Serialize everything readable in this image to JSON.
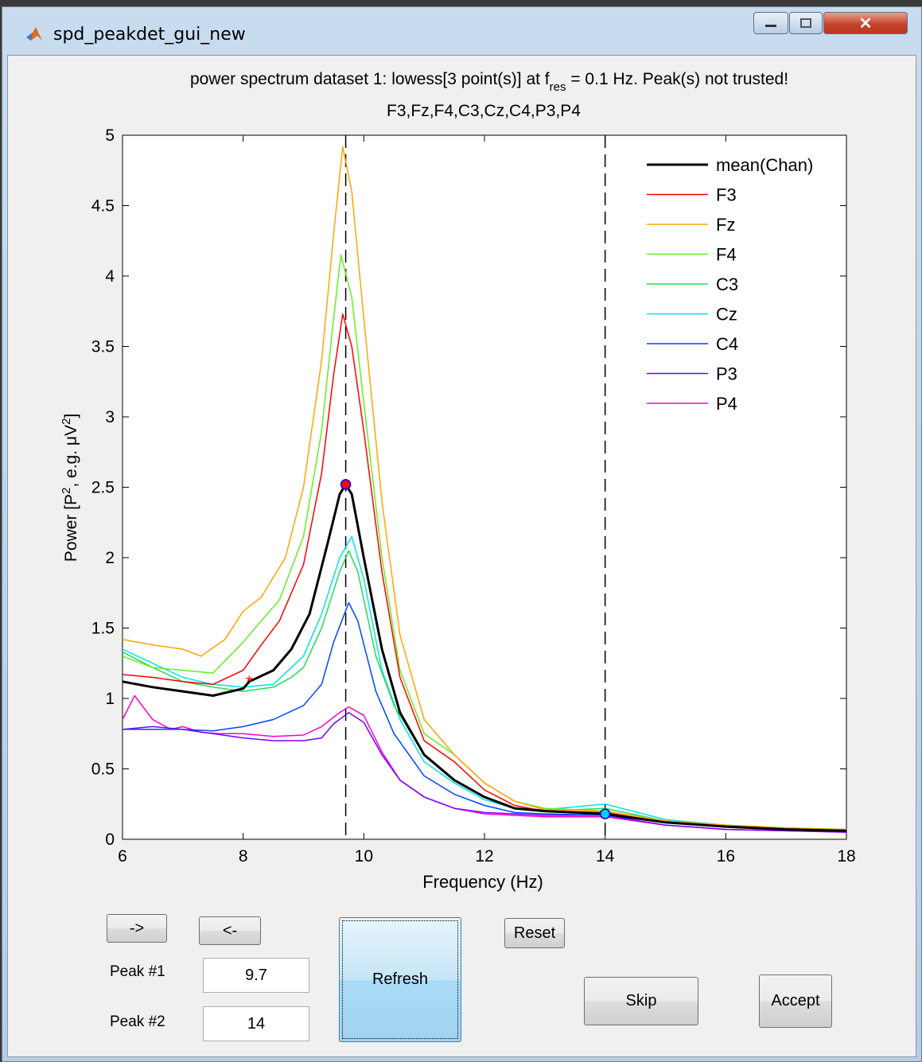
{
  "window": {
    "title": "spd_peakdet_gui_new"
  },
  "plot": {
    "title_line1_pre": "power spectrum dataset 1: lowess[3 point(s)] at f",
    "title_line1_sub": "res",
    "title_line1_post": " = 0.1 Hz. Peak(s) not trusted!",
    "title_line2": "F3,Fz,F4,C3,Cz,C4,P3,P4",
    "xlabel": "Frequency (Hz)",
    "ylabel_pre": "Power [P",
    "ylabel_sup1": "2",
    "ylabel_mid": ", e.g. μV",
    "ylabel_sup2": "2",
    "ylabel_post": "]"
  },
  "chart_data": {
    "type": "line",
    "xlim": [
      6,
      18
    ],
    "ylim": [
      0,
      5
    ],
    "xticks": [
      6,
      8,
      10,
      12,
      14,
      16,
      18
    ],
    "yticks": [
      0,
      0.5,
      1,
      1.5,
      2,
      2.5,
      3,
      3.5,
      4,
      4.5,
      5
    ],
    "vlines": [
      9.7,
      14
    ],
    "legend_position": "top-right",
    "series": [
      {
        "name": "mean(Chan)",
        "color": "#000000",
        "width": 3,
        "points": [
          [
            6,
            1.12
          ],
          [
            6.5,
            1.08
          ],
          [
            7,
            1.05
          ],
          [
            7.5,
            1.02
          ],
          [
            8,
            1.07
          ],
          [
            8.1,
            1.12
          ],
          [
            8.5,
            1.2
          ],
          [
            8.8,
            1.35
          ],
          [
            9.1,
            1.6
          ],
          [
            9.4,
            2.1
          ],
          [
            9.6,
            2.45
          ],
          [
            9.7,
            2.52
          ],
          [
            9.8,
            2.45
          ],
          [
            10,
            2.0
          ],
          [
            10.3,
            1.35
          ],
          [
            10.6,
            0.9
          ],
          [
            11,
            0.6
          ],
          [
            11.5,
            0.42
          ],
          [
            12,
            0.3
          ],
          [
            12.5,
            0.22
          ],
          [
            13,
            0.2
          ],
          [
            14,
            0.18
          ],
          [
            15,
            0.12
          ],
          [
            16,
            0.09
          ],
          [
            17,
            0.07
          ],
          [
            18,
            0.06
          ]
        ]
      },
      {
        "name": "F3",
        "color": "#ff0000",
        "width": 1.5,
        "points": [
          [
            6,
            1.17
          ],
          [
            6.5,
            1.15
          ],
          [
            7,
            1.12
          ],
          [
            7.5,
            1.1
          ],
          [
            8,
            1.2
          ],
          [
            8.3,
            1.38
          ],
          [
            8.6,
            1.55
          ],
          [
            9,
            1.95
          ],
          [
            9.3,
            2.6
          ],
          [
            9.5,
            3.3
          ],
          [
            9.65,
            3.73
          ],
          [
            9.8,
            3.5
          ],
          [
            10,
            2.9
          ],
          [
            10.3,
            1.9
          ],
          [
            10.6,
            1.15
          ],
          [
            11,
            0.7
          ],
          [
            11.5,
            0.55
          ],
          [
            12,
            0.35
          ],
          [
            12.5,
            0.24
          ],
          [
            13,
            0.2
          ],
          [
            14,
            0.19
          ],
          [
            15,
            0.12
          ],
          [
            16,
            0.09
          ],
          [
            17,
            0.07
          ],
          [
            18,
            0.06
          ]
        ]
      },
      {
        "name": "Fz",
        "color": "#ffa500",
        "width": 1.5,
        "points": [
          [
            6,
            1.42
          ],
          [
            6.5,
            1.38
          ],
          [
            7,
            1.35
          ],
          [
            7.3,
            1.3
          ],
          [
            7.7,
            1.42
          ],
          [
            8,
            1.62
          ],
          [
            8.3,
            1.72
          ],
          [
            8.7,
            2.0
          ],
          [
            9,
            2.5
          ],
          [
            9.3,
            3.4
          ],
          [
            9.5,
            4.3
          ],
          [
            9.65,
            4.92
          ],
          [
            9.8,
            4.6
          ],
          [
            10,
            3.7
          ],
          [
            10.3,
            2.4
          ],
          [
            10.6,
            1.45
          ],
          [
            11,
            0.85
          ],
          [
            11.5,
            0.6
          ],
          [
            12,
            0.4
          ],
          [
            12.5,
            0.27
          ],
          [
            13,
            0.21
          ],
          [
            14,
            0.2
          ],
          [
            15,
            0.13
          ],
          [
            16,
            0.1
          ],
          [
            17,
            0.08
          ],
          [
            18,
            0.07
          ]
        ]
      },
      {
        "name": "F4",
        "color": "#66ee22",
        "width": 1.5,
        "points": [
          [
            6,
            1.3
          ],
          [
            6.5,
            1.22
          ],
          [
            7,
            1.2
          ],
          [
            7.5,
            1.18
          ],
          [
            8,
            1.4
          ],
          [
            8.3,
            1.55
          ],
          [
            8.6,
            1.7
          ],
          [
            9,
            2.15
          ],
          [
            9.3,
            2.9
          ],
          [
            9.5,
            3.7
          ],
          [
            9.62,
            4.15
          ],
          [
            9.8,
            3.85
          ],
          [
            10,
            3.1
          ],
          [
            10.3,
            2.0
          ],
          [
            10.6,
            1.2
          ],
          [
            11,
            0.75
          ],
          [
            11.5,
            0.6
          ],
          [
            12,
            0.4
          ],
          [
            12.5,
            0.27
          ],
          [
            13,
            0.22
          ],
          [
            14,
            0.2
          ],
          [
            15,
            0.13
          ],
          [
            16,
            0.1
          ],
          [
            17,
            0.08
          ],
          [
            18,
            0.07
          ]
        ]
      },
      {
        "name": "C3",
        "color": "#22dd55",
        "width": 1.5,
        "points": [
          [
            6,
            1.33
          ],
          [
            6.5,
            1.22
          ],
          [
            7,
            1.12
          ],
          [
            7.5,
            1.08
          ],
          [
            8,
            1.05
          ],
          [
            8.5,
            1.08
          ],
          [
            8.8,
            1.15
          ],
          [
            9,
            1.22
          ],
          [
            9.3,
            1.5
          ],
          [
            9.6,
            1.9
          ],
          [
            9.75,
            2.05
          ],
          [
            9.9,
            1.9
          ],
          [
            10.2,
            1.3
          ],
          [
            10.5,
            0.95
          ],
          [
            11,
            0.6
          ],
          [
            11.5,
            0.42
          ],
          [
            12,
            0.3
          ],
          [
            12.5,
            0.22
          ],
          [
            13,
            0.2
          ],
          [
            14,
            0.22
          ],
          [
            15,
            0.13
          ],
          [
            16,
            0.1
          ],
          [
            17,
            0.08
          ],
          [
            18,
            0.07
          ]
        ]
      },
      {
        "name": "Cz",
        "color": "#00e5e5",
        "width": 1.5,
        "points": [
          [
            6,
            1.35
          ],
          [
            6.5,
            1.25
          ],
          [
            7,
            1.15
          ],
          [
            7.5,
            1.1
          ],
          [
            8,
            1.08
          ],
          [
            8.5,
            1.1
          ],
          [
            9,
            1.3
          ],
          [
            9.3,
            1.6
          ],
          [
            9.6,
            2.0
          ],
          [
            9.8,
            2.15
          ],
          [
            10,
            1.85
          ],
          [
            10.3,
            1.2
          ],
          [
            10.6,
            0.85
          ],
          [
            11,
            0.55
          ],
          [
            11.5,
            0.4
          ],
          [
            12,
            0.28
          ],
          [
            12.5,
            0.22
          ],
          [
            13,
            0.21
          ],
          [
            14,
            0.25
          ],
          [
            15,
            0.14
          ],
          [
            16,
            0.1
          ],
          [
            17,
            0.08
          ],
          [
            18,
            0.07
          ]
        ]
      },
      {
        "name": "C4",
        "color": "#0044ff",
        "width": 1.5,
        "points": [
          [
            6,
            0.78
          ],
          [
            6.5,
            0.78
          ],
          [
            7,
            0.78
          ],
          [
            7.5,
            0.77
          ],
          [
            8,
            0.8
          ],
          [
            8.5,
            0.85
          ],
          [
            9,
            0.95
          ],
          [
            9.3,
            1.1
          ],
          [
            9.5,
            1.4
          ],
          [
            9.75,
            1.68
          ],
          [
            9.9,
            1.55
          ],
          [
            10.2,
            1.05
          ],
          [
            10.5,
            0.75
          ],
          [
            11,
            0.45
          ],
          [
            11.5,
            0.32
          ],
          [
            12,
            0.24
          ],
          [
            12.5,
            0.19
          ],
          [
            13,
            0.18
          ],
          [
            14,
            0.17
          ],
          [
            15,
            0.12
          ],
          [
            16,
            0.09
          ],
          [
            17,
            0.07
          ],
          [
            18,
            0.06
          ]
        ]
      },
      {
        "name": "P3",
        "color": "#7700ff",
        "width": 1.5,
        "points": [
          [
            6,
            0.78
          ],
          [
            6.5,
            0.8
          ],
          [
            7,
            0.78
          ],
          [
            7.5,
            0.75
          ],
          [
            8,
            0.72
          ],
          [
            8.5,
            0.7
          ],
          [
            9,
            0.7
          ],
          [
            9.3,
            0.72
          ],
          [
            9.5,
            0.82
          ],
          [
            9.75,
            0.9
          ],
          [
            10,
            0.83
          ],
          [
            10.3,
            0.6
          ],
          [
            10.6,
            0.42
          ],
          [
            11,
            0.3
          ],
          [
            11.5,
            0.22
          ],
          [
            12,
            0.19
          ],
          [
            13,
            0.17
          ],
          [
            14,
            0.17
          ],
          [
            15,
            0.1
          ],
          [
            16,
            0.07
          ],
          [
            17,
            0.06
          ],
          [
            18,
            0.05
          ]
        ]
      },
      {
        "name": "P4",
        "color": "#ff00cc",
        "width": 1.5,
        "points": [
          [
            6,
            0.85
          ],
          [
            6.2,
            1.02
          ],
          [
            6.5,
            0.85
          ],
          [
            6.8,
            0.78
          ],
          [
            7,
            0.8
          ],
          [
            7.3,
            0.76
          ],
          [
            7.6,
            0.75
          ],
          [
            8,
            0.75
          ],
          [
            8.5,
            0.73
          ],
          [
            9,
            0.74
          ],
          [
            9.3,
            0.8
          ],
          [
            9.6,
            0.9
          ],
          [
            9.75,
            0.94
          ],
          [
            10,
            0.88
          ],
          [
            10.3,
            0.62
          ],
          [
            10.6,
            0.42
          ],
          [
            11,
            0.3
          ],
          [
            11.5,
            0.22
          ],
          [
            12,
            0.18
          ],
          [
            13,
            0.16
          ],
          [
            14,
            0.16
          ],
          [
            15,
            0.1
          ],
          [
            16,
            0.07
          ],
          [
            17,
            0.06
          ],
          [
            18,
            0.05
          ]
        ]
      }
    ],
    "markers": [
      {
        "type": "star",
        "x": 8.1,
        "y": 1.12,
        "color": "#ff0000"
      },
      {
        "type": "circle",
        "x": 9.7,
        "y": 2.52,
        "color": "#ff0000",
        "edge": "#0000ff"
      },
      {
        "type": "circle",
        "x": 14,
        "y": 0.18,
        "color": "#00ccff",
        "edge": "#0000aa"
      }
    ]
  },
  "controls": {
    "next_label": "->",
    "prev_label": "<-",
    "refresh_label": "Refresh",
    "reset_label": "Reset",
    "skip_label": "Skip",
    "accept_label": "Accept",
    "peak1_label": "Peak #1",
    "peak1_value": "9.7",
    "peak2_label": "Peak #2",
    "peak2_value": "14"
  }
}
